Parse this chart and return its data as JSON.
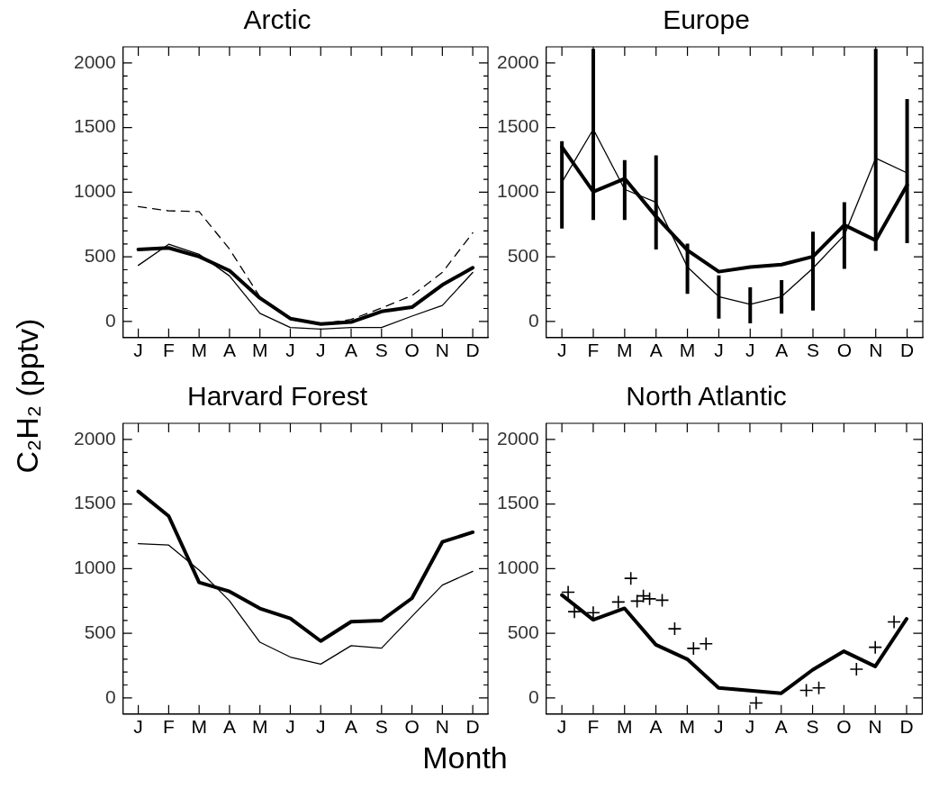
{
  "chart_data": [
    {
      "type": "line",
      "title": "Arctic",
      "ylabel": "C₂H₂ (pptv)",
      "categories": [
        null,
        null,
        "J",
        null,
        null,
        null,
        null,
        "F",
        null,
        null,
        null,
        null,
        "M",
        null,
        null,
        null,
        null,
        "A",
        null,
        null,
        null,
        null,
        "M",
        null,
        null,
        null,
        null,
        "J",
        null,
        null,
        null,
        null,
        "J",
        null,
        null,
        null,
        null,
        "A",
        null,
        null,
        null,
        null,
        "S",
        null,
        null,
        null,
        null,
        "O",
        null,
        null,
        null,
        null,
        "N",
        null,
        null,
        null,
        null,
        "D",
        null,
        null
      ],
      "series": [
        {
          "color": "#000000",
          "values": [
            null,
            null,
            557,
            null,
            null,
            null,
            null,
            569,
            null,
            null,
            null,
            null,
            502,
            null,
            null,
            null,
            null,
            393,
            null,
            null,
            null,
            null,
            181,
            null,
            null,
            null,
            null,
            22,
            null,
            null,
            null,
            null,
            -20,
            null,
            null,
            null,
            null,
            -5,
            null,
            null,
            null,
            null,
            77,
            null,
            null,
            null,
            null,
            110,
            null,
            null,
            null,
            null,
            283,
            null,
            null,
            null,
            null,
            415,
            null,
            null
          ]
        },
        {
          "color": "#000000",
          "values": [
            null,
            null,
            434,
            null,
            null,
            null,
            null,
            597,
            null,
            null,
            null,
            null,
            520,
            null,
            null,
            null,
            null,
            352,
            null,
            null,
            null,
            null,
            63,
            null,
            null,
            null,
            null,
            -47,
            null,
            null,
            null,
            null,
            -60,
            null,
            null,
            null,
            null,
            -47,
            null,
            null,
            null,
            null,
            -47,
            null,
            null,
            null,
            null,
            41,
            null,
            null,
            null,
            null,
            124,
            null,
            null,
            null,
            null,
            379,
            null,
            null
          ]
        },
        {
          "color": "#000000",
          "line_style": "dashed",
          "values": [
            null,
            null,
            889,
            null,
            null,
            null,
            null,
            856,
            null,
            null,
            null,
            null,
            850,
            null,
            null,
            null,
            null,
            560,
            null,
            null,
            null,
            null,
            190,
            null,
            null,
            null,
            null,
            25,
            null,
            null,
            null,
            null,
            -20,
            null,
            null,
            null,
            null,
            15,
            null,
            null,
            null,
            null,
            104,
            null,
            null,
            null,
            null,
            200,
            null,
            null,
            null,
            null,
            379,
            null,
            null,
            null,
            null,
            686,
            null,
            null
          ]
        }
      ],
      "ylim": [
        -125,
        2125
      ],
      "yticks": [
        0,
        {
          "value": 100,
          "label": null
        },
        {
          "value": 200,
          "label": null
        },
        {
          "value": 300,
          "label": null
        },
        {
          "value": 400,
          "label": null
        },
        500,
        {
          "value": 600,
          "label": null
        },
        {
          "value": 700,
          "label": null
        },
        {
          "value": 800,
          "label": null
        },
        {
          "value": 900,
          "label": null
        },
        1000,
        {
          "value": 1100,
          "label": null
        },
        {
          "value": 1200,
          "label": null
        },
        {
          "value": 1300,
          "label": null
        },
        {
          "value": 1400,
          "label": null
        },
        1500,
        {
          "value": 1600,
          "label": null
        },
        {
          "value": 1700,
          "label": null
        },
        {
          "value": 1800,
          "label": null
        },
        {
          "value": 1900,
          "label": null
        },
        2000
      ],
      "grid": false,
      "legend": false
    },
    {
      "type": "line",
      "title": "Europe",
      "categories": [
        null,
        null,
        "J",
        null,
        null,
        null,
        null,
        "F",
        null,
        null,
        null,
        null,
        "M",
        null,
        null,
        null,
        null,
        "A",
        null,
        null,
        null,
        null,
        "M",
        null,
        null,
        null,
        null,
        "J",
        null,
        null,
        null,
        null,
        "J",
        null,
        null,
        null,
        null,
        "A",
        null,
        null,
        null,
        null,
        "S",
        null,
        null,
        null,
        null,
        "O",
        null,
        null,
        null,
        null,
        "N",
        null,
        null,
        null,
        null,
        "D",
        null,
        null
      ],
      "series": [
        {
          "color": "#000000",
          "values": [
            null,
            null,
            1351,
            null,
            null,
            null,
            null,
            1004,
            null,
            null,
            null,
            null,
            1105,
            null,
            null,
            null,
            null,
            812,
            null,
            null,
            null,
            null,
            551,
            null,
            null,
            null,
            null,
            385,
            null,
            null,
            null,
            null,
            421,
            null,
            null,
            null,
            null,
            440,
            null,
            null,
            null,
            null,
            502,
            null,
            null,
            null,
            null,
            746,
            null,
            null,
            null,
            null,
            627,
            null,
            null,
            null,
            null,
            1055,
            null,
            null
          ],
          "errors": [
            null,
            null,
            [
              719,
              1395
            ],
            null,
            null,
            null,
            null,
            [
              785,
              2110
            ],
            null,
            null,
            null,
            null,
            [
              785,
              1248
            ],
            null,
            null,
            null,
            null,
            [
              557,
              1285
            ],
            null,
            null,
            null,
            null,
            [
              214,
              602
            ],
            null,
            null,
            null,
            null,
            [
              22,
              357
            ],
            null,
            null,
            null,
            null,
            [
              -14,
              264
            ],
            null,
            null,
            null,
            null,
            [
              60,
              319
            ],
            null,
            null,
            null,
            null,
            [
              85,
              694
            ],
            null,
            null,
            null,
            null,
            [
              407,
              922
            ],
            null,
            null,
            null,
            null,
            [
              546,
              2110
            ],
            null,
            null,
            null,
            null,
            [
              606,
              1720
            ],
            null,
            null
          ]
        },
        {
          "color": "#000000",
          "values": [
            null,
            null,
            1077,
            null,
            null,
            null,
            null,
            1487,
            null,
            null,
            null,
            null,
            1022,
            null,
            null,
            null,
            null,
            922,
            null,
            null,
            null,
            null,
            421,
            null,
            null,
            null,
            null,
            192,
            null,
            null,
            null,
            null,
            132,
            null,
            null,
            null,
            null,
            192,
            null,
            null,
            null,
            null,
            412,
            null,
            null,
            null,
            null,
            667,
            null,
            null,
            null,
            null,
            1263,
            null,
            null,
            null,
            null,
            1149,
            null,
            null
          ]
        }
      ],
      "ylim": [
        -125,
        2125
      ],
      "yticks": [
        0,
        {
          "value": 100,
          "label": null
        },
        {
          "value": 200,
          "label": null
        },
        {
          "value": 300,
          "label": null
        },
        {
          "value": 400,
          "label": null
        },
        500,
        {
          "value": 600,
          "label": null
        },
        {
          "value": 700,
          "label": null
        },
        {
          "value": 800,
          "label": null
        },
        {
          "value": 900,
          "label": null
        },
        1000,
        {
          "value": 1100,
          "label": null
        },
        {
          "value": 1200,
          "label": null
        },
        {
          "value": 1300,
          "label": null
        },
        {
          "value": 1400,
          "label": null
        },
        1500,
        {
          "value": 1600,
          "label": null
        },
        {
          "value": 1700,
          "label": null
        },
        {
          "value": 1800,
          "label": null
        },
        {
          "value": 1900,
          "label": null
        },
        2000
      ],
      "grid": false,
      "legend": false
    },
    {
      "type": "line",
      "title": "Harvard Forest",
      "xlabel": "Month",
      "categories": [
        null,
        null,
        "J",
        null,
        null,
        null,
        null,
        "F",
        null,
        null,
        null,
        null,
        "M",
        null,
        null,
        null,
        null,
        "A",
        null,
        null,
        null,
        null,
        "M",
        null,
        null,
        null,
        null,
        "J",
        null,
        null,
        null,
        null,
        "J",
        null,
        null,
        null,
        null,
        "A",
        null,
        null,
        null,
        null,
        "S",
        null,
        null,
        null,
        null,
        "O",
        null,
        null,
        null,
        null,
        "N",
        null,
        null,
        null,
        null,
        "D",
        null,
        null
      ],
      "series": [
        {
          "color": "#000000",
          "values": [
            null,
            null,
            1598,
            null,
            null,
            null,
            null,
            1407,
            null,
            null,
            null,
            null,
            894,
            null,
            null,
            null,
            null,
            824,
            null,
            null,
            null,
            null,
            692,
            null,
            null,
            null,
            null,
            615,
            null,
            null,
            null,
            null,
            440,
            null,
            null,
            null,
            null,
            590,
            null,
            null,
            null,
            null,
            599,
            null,
            null,
            null,
            null,
            771,
            null,
            null,
            null,
            null,
            1207,
            null,
            null,
            null,
            null,
            1282,
            null,
            null
          ]
        },
        {
          "color": "#000000",
          "values": [
            null,
            null,
            1194,
            null,
            null,
            null,
            null,
            1183,
            null,
            null,
            null,
            null,
            989,
            null,
            null,
            null,
            null,
            751,
            null,
            null,
            null,
            null,
            431,
            null,
            null,
            null,
            null,
            316,
            null,
            null,
            null,
            null,
            261,
            null,
            null,
            null,
            null,
            404,
            null,
            null,
            null,
            null,
            385,
            null,
            null,
            null,
            null,
            631,
            null,
            null,
            null,
            null,
            873,
            null,
            null,
            null,
            null,
            979,
            null,
            null
          ]
        }
      ],
      "ylim": [
        -125,
        2125
      ],
      "yticks": [
        0,
        {
          "value": 100,
          "label": null
        },
        {
          "value": 200,
          "label": null
        },
        {
          "value": 300,
          "label": null
        },
        {
          "value": 400,
          "label": null
        },
        500,
        {
          "value": 600,
          "label": null
        },
        {
          "value": 700,
          "label": null
        },
        {
          "value": 800,
          "label": null
        },
        {
          "value": 900,
          "label": null
        },
        1000,
        {
          "value": 1100,
          "label": null
        },
        {
          "value": 1200,
          "label": null
        },
        {
          "value": 1300,
          "label": null
        },
        {
          "value": 1400,
          "label": null
        },
        1500,
        {
          "value": 1600,
          "label": null
        },
        {
          "value": 1700,
          "label": null
        },
        {
          "value": 1800,
          "label": null
        },
        {
          "value": 1900,
          "label": null
        },
        2000
      ],
      "grid": false,
      "legend": false
    },
    {
      "type": "line",
      "title": "North Atlantic",
      "categories": [
        null,
        null,
        "J",
        null,
        null,
        null,
        null,
        "F",
        null,
        null,
        null,
        null,
        "M",
        null,
        null,
        null,
        null,
        "A",
        null,
        null,
        null,
        null,
        "M",
        null,
        null,
        null,
        null,
        "J",
        null,
        null,
        null,
        null,
        "J",
        null,
        null,
        null,
        null,
        "A",
        null,
        null,
        null,
        null,
        "S",
        null,
        null,
        null,
        null,
        "O",
        null,
        null,
        null,
        null,
        "N",
        null,
        null,
        null,
        null,
        "D",
        null,
        null
      ],
      "series": [
        {
          "color": "#000000",
          "values": [
            null,
            null,
            796,
            null,
            null,
            null,
            null,
            605,
            null,
            null,
            null,
            null,
            693,
            null,
            null,
            null,
            null,
            411,
            null,
            null,
            null,
            null,
            300,
            null,
            null,
            null,
            null,
            78,
            null,
            null,
            null,
            null,
            56,
            null,
            null,
            null,
            null,
            36,
            null,
            null,
            null,
            null,
            217,
            null,
            null,
            null,
            null,
            361,
            null,
            null,
            null,
            null,
            244,
            null,
            null,
            null,
            null,
            612,
            null,
            null
          ]
        },
        {
          "type": "scatter",
          "color": "#000000",
          "marker": "cross",
          "values": [
            null,
            null,
            null,
            818,
            667,
            null,
            null,
            660,
            null,
            null,
            null,
            742,
            null,
            925,
            749,
            789,
            767,
            null,
            756,
            null,
            535,
            null,
            null,
            383,
            null,
            419,
            null,
            null,
            null,
            null,
            null,
            null,
            null,
            -39,
            null,
            null,
            null,
            null,
            null,
            null,
            null,
            58,
            null,
            78,
            null,
            null,
            null,
            null,
            null,
            222,
            null,
            null,
            392,
            null,
            null,
            588,
            null,
            null,
            null,
            null
          ]
        }
      ],
      "ylim": [
        -125,
        2125
      ],
      "yticks": [
        0,
        {
          "value": 100,
          "label": null
        },
        {
          "value": 200,
          "label": null
        },
        {
          "value": 300,
          "label": null
        },
        {
          "value": 400,
          "label": null
        },
        500,
        {
          "value": 600,
          "label": null
        },
        {
          "value": 700,
          "label": null
        },
        {
          "value": 800,
          "label": null
        },
        {
          "value": 900,
          "label": null
        },
        1000,
        {
          "value": 1100,
          "label": null
        },
        {
          "value": 1200,
          "label": null
        },
        {
          "value": 1300,
          "label": null
        },
        {
          "value": 1400,
          "label": null
        },
        1500,
        {
          "value": 1600,
          "label": null
        },
        {
          "value": 1700,
          "label": null
        },
        {
          "value": 1800,
          "label": null
        },
        {
          "value": 1900,
          "label": null
        },
        2000
      ],
      "grid": false,
      "legend": false
    }
  ]
}
